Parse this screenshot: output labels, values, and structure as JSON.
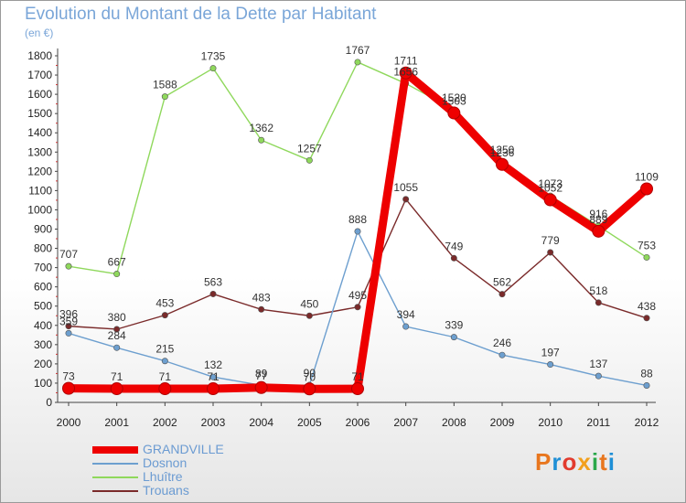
{
  "title": "Evolution du Montant de la Dette par Habitant",
  "unit": "(en €)",
  "logo": {
    "text": "Proxiti",
    "colors": [
      "#e8761e",
      "#1f8fd6",
      "#e23b2e",
      "#f2a01c",
      "#2aa84a",
      "#e8761e",
      "#1f8fd6"
    ]
  },
  "chart_data": {
    "type": "line",
    "x": [
      "2000",
      "2001",
      "2002",
      "2003",
      "2004",
      "2005",
      "2006",
      "2007",
      "2008",
      "2009",
      "2010",
      "2011",
      "2012"
    ],
    "ylim": [
      0,
      1800
    ],
    "yticks": [
      0,
      100,
      200,
      300,
      400,
      500,
      600,
      700,
      800,
      900,
      1000,
      1100,
      1200,
      1300,
      1400,
      1500,
      1600,
      1700,
      1800
    ],
    "grid": false,
    "legend_placement": "bottom-left",
    "series": [
      {
        "name": "GRANDVILLE",
        "color": "#ee0000",
        "values": [
          73,
          71,
          71,
          71,
          77,
          70,
          71,
          1711,
          1503,
          1236,
          1052,
          889,
          1109
        ]
      },
      {
        "name": "Dosnon",
        "color": "#6d9fcf",
        "values": [
          359,
          284,
          215,
          132,
          89,
          90,
          888,
          394,
          339,
          246,
          197,
          137,
          88
        ]
      },
      {
        "name": "Lhuître",
        "color": "#8fd85c",
        "values": [
          707,
          667,
          1588,
          1735,
          1362,
          1257,
          1767,
          1656,
          1520,
          1250,
          1073,
          916,
          753
        ]
      },
      {
        "name": "Trouans",
        "color": "#7a2a2a",
        "values": [
          396,
          380,
          453,
          563,
          483,
          450,
          495,
          1055,
          749,
          562,
          779,
          518,
          438
        ]
      }
    ]
  }
}
